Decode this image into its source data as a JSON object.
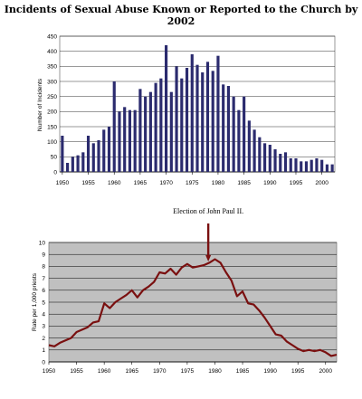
{
  "page": {
    "title": "Incidents of Sexual Abuse Known or Reported to the Church by 2002"
  },
  "chart_data": [
    {
      "type": "bar",
      "title": "Incidents of Sexual Abuse Known or Reported to the Church by 2002",
      "xlabel": "",
      "ylabel": "Number of Incidents",
      "xlim": [
        1950,
        2002
      ],
      "ylim": [
        0,
        450
      ],
      "yticks": [
        0,
        50,
        100,
        150,
        200,
        250,
        300,
        350,
        400,
        450
      ],
      "xticks": [
        1950,
        1955,
        1960,
        1965,
        1970,
        1975,
        1980,
        1985,
        1990,
        1995,
        2000
      ],
      "grid": "horizontal",
      "bar_color": "#2b2b6e",
      "plot_bg": "#ffffff",
      "years": [
        1950,
        1951,
        1952,
        1953,
        1954,
        1955,
        1956,
        1957,
        1958,
        1959,
        1960,
        1961,
        1962,
        1963,
        1964,
        1965,
        1966,
        1967,
        1968,
        1969,
        1970,
        1971,
        1972,
        1973,
        1974,
        1975,
        1976,
        1977,
        1978,
        1979,
        1980,
        1981,
        1982,
        1983,
        1984,
        1985,
        1986,
        1987,
        1988,
        1989,
        1990,
        1991,
        1992,
        1993,
        1994,
        1995,
        1996,
        1997,
        1998,
        1999,
        2000,
        2001,
        2002
      ],
      "values": [
        120,
        30,
        50,
        55,
        65,
        120,
        95,
        105,
        140,
        150,
        300,
        200,
        215,
        205,
        205,
        275,
        250,
        265,
        295,
        310,
        420,
        265,
        350,
        310,
        345,
        390,
        355,
        330,
        365,
        335,
        385,
        290,
        285,
        250,
        205,
        250,
        170,
        140,
        115,
        95,
        90,
        75,
        60,
        65,
        45,
        45,
        35,
        35,
        40,
        45,
        40,
        25,
        25
      ]
    },
    {
      "type": "line",
      "title": "",
      "xlabel": "",
      "ylabel": "Rate per 1,000 priests",
      "xlim": [
        1950,
        2002
      ],
      "ylim": [
        0,
        10
      ],
      "yticks": [
        0,
        1,
        2,
        3,
        4,
        5,
        6,
        7,
        8,
        9,
        10
      ],
      "xticks": [
        1950,
        1955,
        1960,
        1965,
        1970,
        1975,
        1980,
        1985,
        1990,
        1995,
        2000
      ],
      "grid": "horizontal",
      "line_color": "#7a1010",
      "plot_bg": "#c0c0c0",
      "annotation": {
        "text": "Election of John Paul II.",
        "year": 1978.8
      },
      "x": [
        1950,
        1951,
        1952,
        1953,
        1954,
        1955,
        1956,
        1957,
        1958,
        1959,
        1960,
        1961,
        1962,
        1963,
        1964,
        1965,
        1966,
        1967,
        1968,
        1969,
        1970,
        1971,
        1972,
        1973,
        1974,
        1975,
        1976,
        1977,
        1978,
        1979,
        1980,
        1981,
        1982,
        1983,
        1984,
        1985,
        1986,
        1987,
        1988,
        1989,
        1990,
        1991,
        1992,
        1993,
        1994,
        1995,
        1996,
        1997,
        1998,
        1999,
        2000,
        2001,
        2002
      ],
      "y": [
        1.4,
        1.3,
        1.6,
        1.8,
        2.0,
        2.5,
        2.7,
        2.9,
        3.3,
        3.4,
        4.9,
        4.5,
        5.0,
        5.3,
        5.6,
        6.0,
        5.4,
        6.0,
        6.3,
        6.7,
        7.5,
        7.4,
        7.8,
        7.3,
        7.9,
        8.2,
        7.9,
        8.0,
        8.1,
        8.3,
        8.6,
        8.3,
        7.5,
        6.8,
        5.5,
        5.9,
        4.9,
        4.8,
        4.3,
        3.7,
        3.0,
        2.3,
        2.2,
        1.7,
        1.4,
        1.1,
        0.9,
        1.0,
        0.9,
        1.0,
        0.8,
        0.5,
        0.6
      ]
    }
  ]
}
